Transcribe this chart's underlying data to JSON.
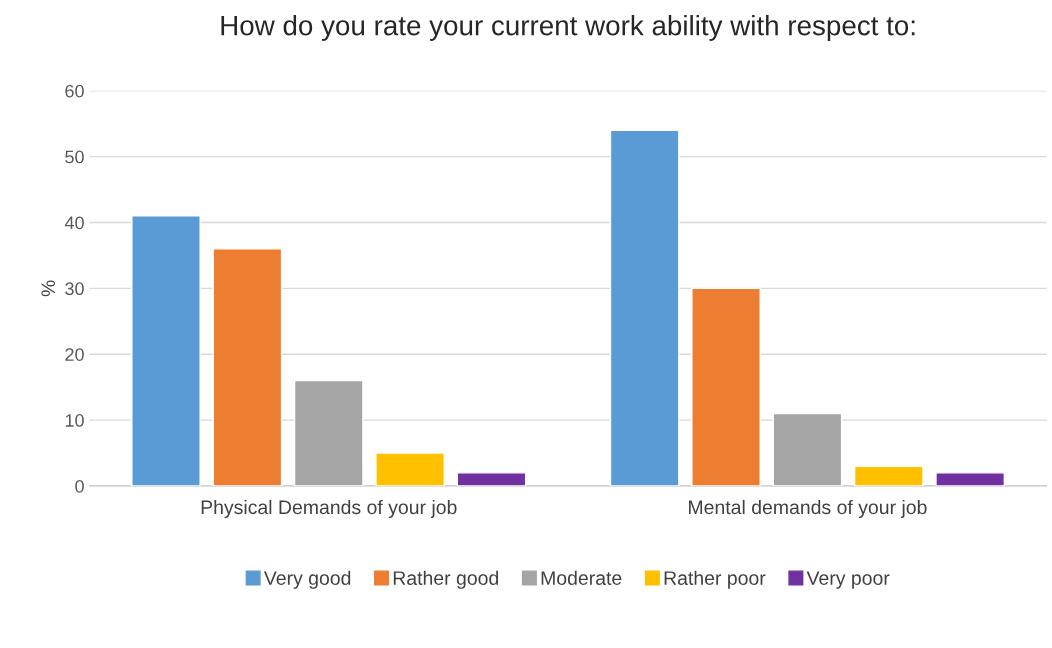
{
  "chart_data": {
    "type": "bar",
    "title": "How do you rate your current work ability with respect to:",
    "ylabel": "%",
    "categories": [
      "Physical Demands of your job",
      "Mental demands of your job"
    ],
    "series": [
      {
        "name": "Very good",
        "color": "#5b9bd5",
        "values": [
          41,
          54
        ]
      },
      {
        "name": "Rather good",
        "color": "#ed7d31",
        "values": [
          36,
          30
        ]
      },
      {
        "name": "Moderate",
        "color": "#a5a5a5",
        "values": [
          16,
          11
        ]
      },
      {
        "name": "Rather poor",
        "color": "#ffc000",
        "values": [
          5,
          3
        ]
      },
      {
        "name": "Very poor",
        "color": "#7030a0",
        "values": [
          2,
          2
        ]
      }
    ],
    "ylim": [
      0,
      60
    ],
    "yticks": [
      0,
      10,
      20,
      30,
      40,
      50,
      60
    ],
    "grid": "y",
    "legend": "bottom"
  }
}
